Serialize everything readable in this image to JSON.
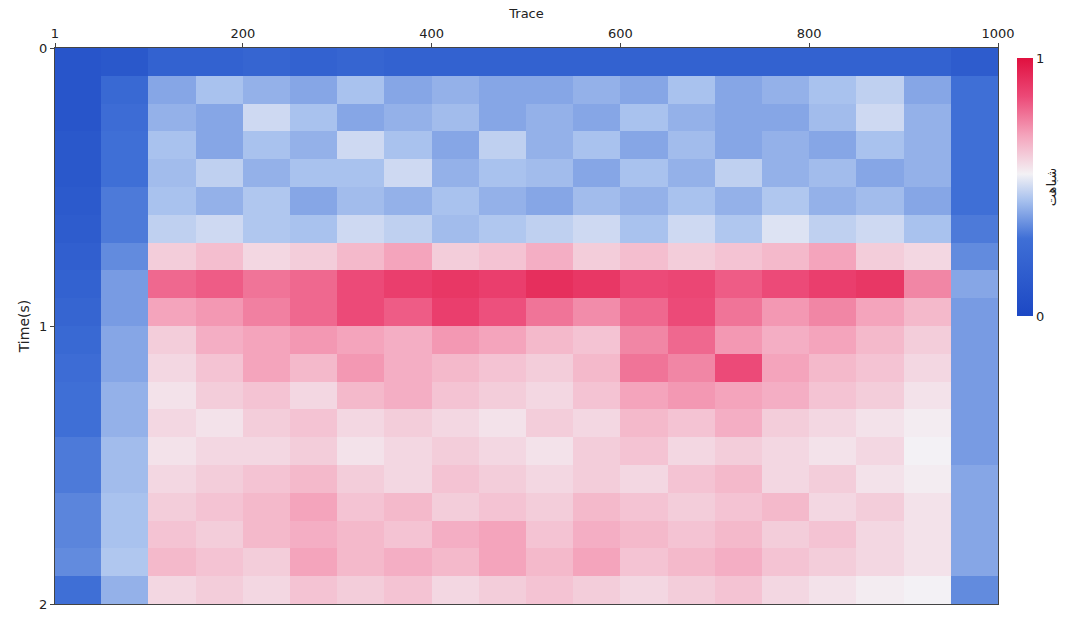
{
  "chart_data": {
    "type": "heatmap",
    "x_label": "Trace",
    "y_label": "Time(s)",
    "x": [
      25,
      75,
      125,
      175,
      225,
      275,
      325,
      375,
      425,
      475,
      525,
      575,
      625,
      675,
      725,
      775,
      825,
      875,
      925,
      975
    ],
    "y": [
      0.05,
      0.15,
      0.25,
      0.35,
      0.45,
      0.55,
      0.65,
      0.75,
      0.85,
      0.95,
      1.05,
      1.15,
      1.25,
      1.35,
      1.45,
      1.55,
      1.65,
      1.75,
      1.85,
      1.95
    ],
    "cells": [
      [
        0.1,
        0.12,
        0.2,
        0.2,
        0.22,
        0.2,
        0.22,
        0.2,
        0.2,
        0.2,
        0.2,
        0.2,
        0.2,
        0.2,
        0.2,
        0.2,
        0.2,
        0.2,
        0.2,
        0.15
      ],
      [
        0.1,
        0.25,
        0.4,
        0.45,
        0.42,
        0.4,
        0.45,
        0.4,
        0.42,
        0.4,
        0.4,
        0.42,
        0.4,
        0.45,
        0.4,
        0.42,
        0.45,
        0.48,
        0.4,
        0.3
      ],
      [
        0.1,
        0.28,
        0.42,
        0.4,
        0.5,
        0.45,
        0.4,
        0.42,
        0.44,
        0.4,
        0.42,
        0.4,
        0.45,
        0.42,
        0.4,
        0.4,
        0.44,
        0.5,
        0.42,
        0.3
      ],
      [
        0.12,
        0.3,
        0.45,
        0.4,
        0.45,
        0.42,
        0.5,
        0.45,
        0.4,
        0.48,
        0.42,
        0.45,
        0.4,
        0.44,
        0.4,
        0.42,
        0.4,
        0.45,
        0.42,
        0.3
      ],
      [
        0.12,
        0.3,
        0.44,
        0.48,
        0.42,
        0.45,
        0.45,
        0.5,
        0.42,
        0.45,
        0.44,
        0.4,
        0.45,
        0.42,
        0.48,
        0.42,
        0.44,
        0.4,
        0.42,
        0.3
      ],
      [
        0.14,
        0.32,
        0.45,
        0.42,
        0.46,
        0.4,
        0.44,
        0.42,
        0.45,
        0.42,
        0.4,
        0.44,
        0.42,
        0.45,
        0.42,
        0.46,
        0.42,
        0.44,
        0.4,
        0.3
      ],
      [
        0.15,
        0.32,
        0.48,
        0.5,
        0.46,
        0.45,
        0.5,
        0.48,
        0.44,
        0.46,
        0.48,
        0.5,
        0.45,
        0.5,
        0.46,
        0.52,
        0.48,
        0.5,
        0.45,
        0.32
      ],
      [
        0.18,
        0.35,
        0.62,
        0.65,
        0.6,
        0.62,
        0.66,
        0.7,
        0.62,
        0.64,
        0.68,
        0.62,
        0.65,
        0.62,
        0.64,
        0.66,
        0.7,
        0.62,
        0.6,
        0.35
      ],
      [
        0.2,
        0.38,
        0.8,
        0.82,
        0.78,
        0.8,
        0.85,
        0.88,
        0.9,
        0.88,
        0.92,
        0.9,
        0.85,
        0.86,
        0.82,
        0.85,
        0.88,
        0.9,
        0.75,
        0.4
      ],
      [
        0.22,
        0.38,
        0.7,
        0.72,
        0.76,
        0.8,
        0.85,
        0.82,
        0.88,
        0.84,
        0.78,
        0.74,
        0.8,
        0.85,
        0.78,
        0.72,
        0.75,
        0.7,
        0.66,
        0.38
      ],
      [
        0.25,
        0.4,
        0.62,
        0.68,
        0.7,
        0.72,
        0.7,
        0.68,
        0.72,
        0.7,
        0.66,
        0.64,
        0.75,
        0.8,
        0.72,
        0.68,
        0.7,
        0.66,
        0.62,
        0.38
      ],
      [
        0.28,
        0.4,
        0.6,
        0.64,
        0.7,
        0.66,
        0.72,
        0.68,
        0.66,
        0.64,
        0.62,
        0.66,
        0.78,
        0.75,
        0.85,
        0.7,
        0.66,
        0.64,
        0.6,
        0.38
      ],
      [
        0.3,
        0.42,
        0.58,
        0.62,
        0.64,
        0.6,
        0.66,
        0.68,
        0.64,
        0.62,
        0.6,
        0.64,
        0.7,
        0.72,
        0.7,
        0.68,
        0.64,
        0.62,
        0.58,
        0.38
      ],
      [
        0.3,
        0.42,
        0.6,
        0.58,
        0.62,
        0.64,
        0.6,
        0.62,
        0.6,
        0.58,
        0.62,
        0.6,
        0.66,
        0.64,
        0.68,
        0.62,
        0.6,
        0.58,
        0.56,
        0.38
      ],
      [
        0.32,
        0.44,
        0.58,
        0.6,
        0.6,
        0.62,
        0.58,
        0.6,
        0.62,
        0.6,
        0.58,
        0.62,
        0.64,
        0.6,
        0.62,
        0.6,
        0.58,
        0.6,
        0.55,
        0.38
      ],
      [
        0.32,
        0.44,
        0.6,
        0.62,
        0.64,
        0.66,
        0.62,
        0.6,
        0.64,
        0.62,
        0.6,
        0.62,
        0.6,
        0.64,
        0.66,
        0.6,
        0.62,
        0.58,
        0.56,
        0.4
      ],
      [
        0.34,
        0.45,
        0.62,
        0.64,
        0.66,
        0.7,
        0.64,
        0.66,
        0.62,
        0.64,
        0.62,
        0.66,
        0.64,
        0.62,
        0.64,
        0.66,
        0.6,
        0.62,
        0.58,
        0.4
      ],
      [
        0.34,
        0.45,
        0.64,
        0.62,
        0.66,
        0.68,
        0.66,
        0.64,
        0.68,
        0.7,
        0.64,
        0.68,
        0.66,
        0.64,
        0.66,
        0.62,
        0.64,
        0.6,
        0.58,
        0.4
      ],
      [
        0.35,
        0.46,
        0.66,
        0.64,
        0.62,
        0.7,
        0.66,
        0.68,
        0.66,
        0.7,
        0.66,
        0.7,
        0.64,
        0.66,
        0.68,
        0.64,
        0.62,
        0.6,
        0.58,
        0.4
      ],
      [
        0.3,
        0.42,
        0.6,
        0.62,
        0.6,
        0.64,
        0.62,
        0.64,
        0.6,
        0.62,
        0.64,
        0.62,
        0.6,
        0.62,
        0.64,
        0.6,
        0.58,
        0.56,
        0.55,
        0.35
      ]
    ],
    "xlim": [
      1,
      1000
    ],
    "xticks": [
      1,
      200,
      400,
      600,
      800,
      1000
    ],
    "ylim": [
      2,
      0
    ],
    "yticks": [
      0,
      1,
      2
    ],
    "colorbar": {
      "range": [
        0,
        1
      ],
      "ticks": [
        0,
        1
      ],
      "title": "شباهت"
    }
  }
}
